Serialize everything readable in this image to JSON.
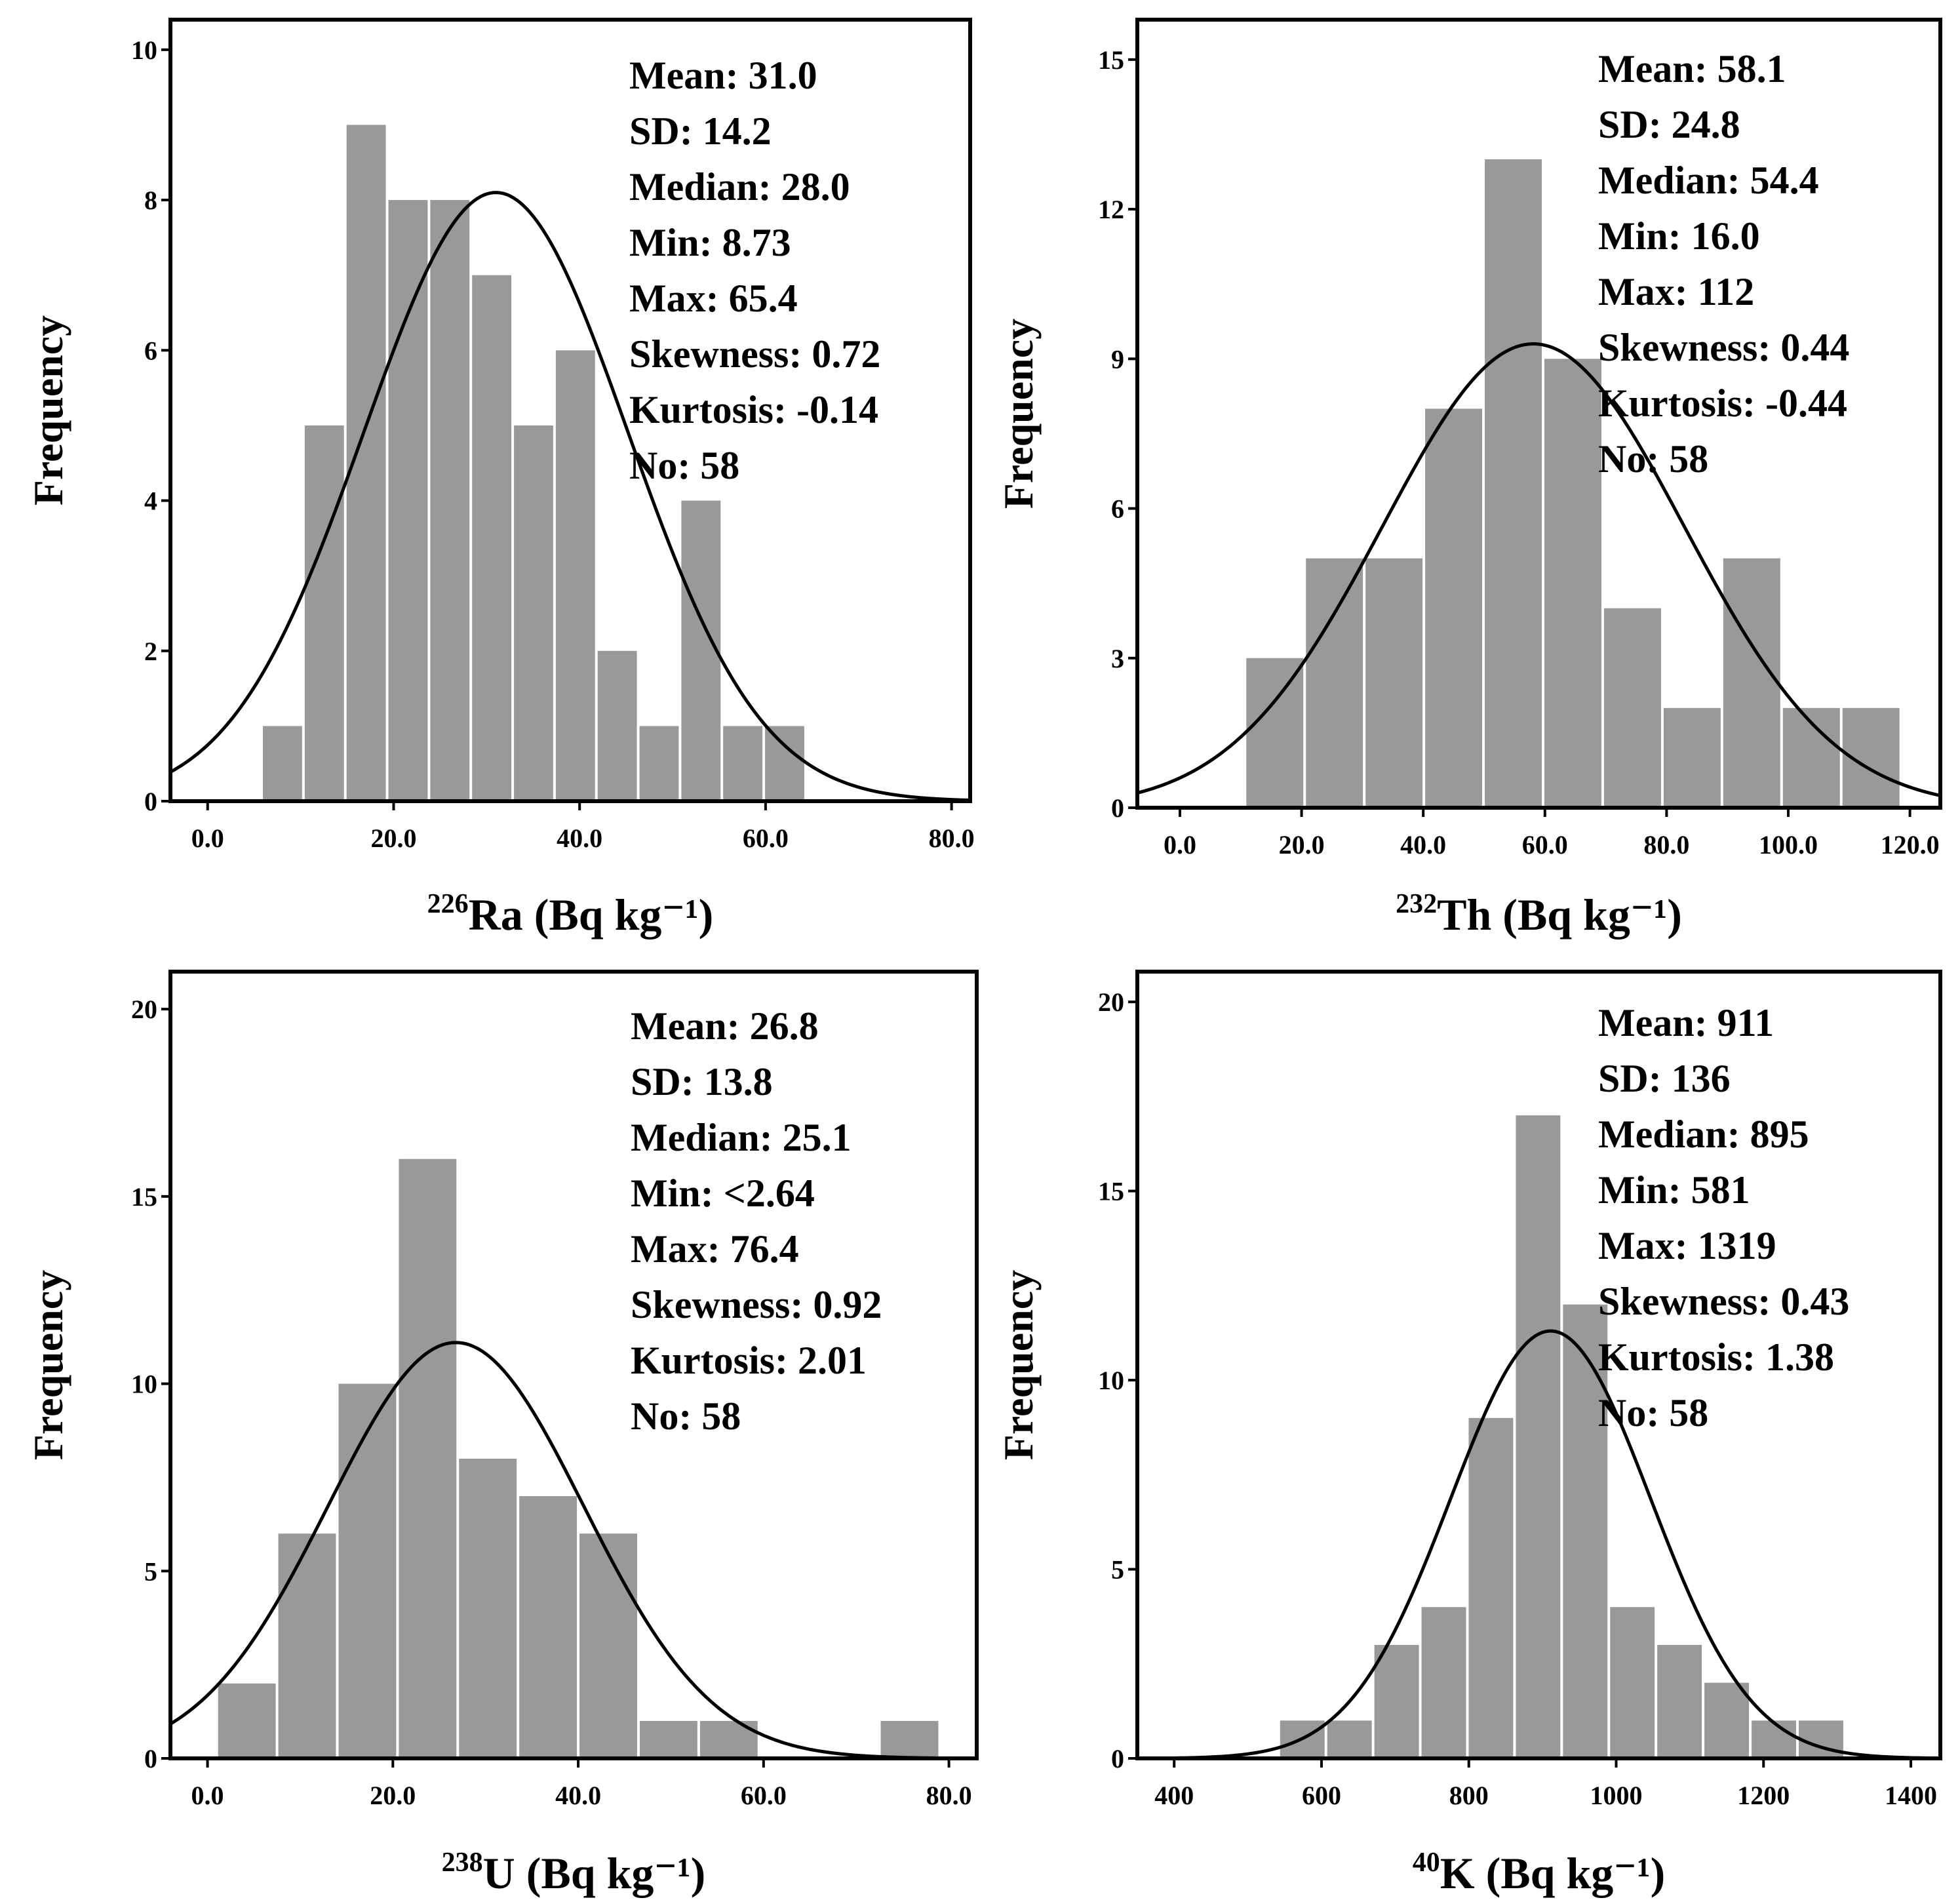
{
  "chart_data": [
    {
      "type": "bar",
      "id": "ra226",
      "xlabel_iso": "226",
      "xlabel_rest": "Ra (Bq kg⁻¹)",
      "ylabel": "Frequency",
      "xlim": [
        -4,
        82
      ],
      "ylim": [
        0,
        10.4
      ],
      "xticks": [
        "0.0",
        "20.0",
        "40.0",
        "60.0",
        "80.0"
      ],
      "xtick_values": [
        0,
        20,
        40,
        60,
        80
      ],
      "yticks": [
        "0",
        "2",
        "4",
        "6",
        "8",
        "10"
      ],
      "ytick_values": [
        0,
        2,
        4,
        6,
        8,
        10
      ],
      "bin_width": 4.5,
      "bin_start": 5.8,
      "values": [
        1,
        5,
        9,
        8,
        8,
        7,
        5,
        6,
        2,
        1,
        4,
        1,
        1
      ],
      "normal_curve": {
        "mean": 31.0,
        "sd": 14.2,
        "peak": 8.1
      },
      "stats": [
        "Mean: 31.0",
        "SD: 14.2",
        "Median: 28.0",
        "Min: 8.73",
        "Max: 65.4",
        "Skewness: 0.72",
        "Kurtosis:  -0.14",
        "No: 58"
      ]
    },
    {
      "type": "bar",
      "id": "th232",
      "xlabel_iso": "232",
      "xlabel_rest": "Th (Bq kg⁻¹)",
      "ylabel": "Frequency",
      "xlim": [
        -7,
        125
      ],
      "ylim": [
        0,
        15.8
      ],
      "xticks": [
        "0.0",
        "20.0",
        "40.0",
        "60.0",
        "80.0",
        "100.0",
        "120.0"
      ],
      "xtick_values": [
        0,
        20,
        40,
        60,
        80,
        100,
        120
      ],
      "yticks": [
        "0",
        "3",
        "6",
        "9",
        "12",
        "15"
      ],
      "ytick_values": [
        0,
        3,
        6,
        9,
        12,
        15
      ],
      "bin_width": 9.8,
      "bin_start": 10.7,
      "values": [
        3,
        5,
        5,
        8,
        13,
        9,
        4,
        2,
        5,
        2,
        2
      ],
      "normal_curve": {
        "mean": 58.1,
        "sd": 24.8,
        "peak": 9.3
      },
      "stats": [
        "Mean: 58.1",
        "SD: 24.8",
        "Median: 54.4",
        "Min: 16.0",
        "Max: 112",
        "Skewness: 0.44",
        "Kurtosis:  -0.44",
        "No: 58"
      ]
    },
    {
      "type": "bar",
      "id": "u238",
      "xlabel_iso": "238",
      "xlabel_rest": "U (Bq kg⁻¹)",
      "ylabel": "Frequency",
      "xlim": [
        -4,
        83
      ],
      "ylim": [
        0,
        21
      ],
      "xticks": [
        "0.0",
        "20.0",
        "40.0",
        "60.0",
        "80.0"
      ],
      "xtick_values": [
        0,
        20,
        40,
        60,
        80
      ],
      "yticks": [
        "0",
        "5",
        "10",
        "15",
        "20"
      ],
      "ytick_values": [
        0,
        5,
        10,
        15,
        20
      ],
      "bin_width": 6.5,
      "bin_start": 1.0,
      "values": [
        2,
        6,
        10,
        16,
        8,
        7,
        6,
        1,
        1,
        0,
        0,
        1
      ],
      "normal_curve": {
        "mean": 26.8,
        "sd": 13.8,
        "peak": 11.1
      },
      "stats": [
        "Mean: 26.8",
        "SD: 13.8",
        "Median: 25.1",
        "Min: <2.64",
        "Max: 76.4",
        "Skewness: 0.92",
        "Kurtosis: 2.01",
        "No: 58"
      ]
    },
    {
      "type": "bar",
      "id": "k40",
      "xlabel_iso": "40",
      "xlabel_rest": "K (Bq kg⁻¹)",
      "ylabel": "Frequency",
      "xlim": [
        350,
        1440
      ],
      "ylim": [
        0,
        20.8
      ],
      "xticks": [
        "400",
        "600",
        "800",
        "1000",
        "1200",
        "1400"
      ],
      "xtick_values": [
        400,
        600,
        800,
        1000,
        1200,
        1400
      ],
      "yticks": [
        "0",
        "5",
        "10",
        "15",
        "20"
      ],
      "ytick_values": [
        0,
        5,
        10,
        15,
        20
      ],
      "bin_width": 64,
      "bin_start": 542,
      "values": [
        1,
        1,
        3,
        4,
        9,
        17,
        12,
        4,
        3,
        2,
        1,
        1
      ],
      "normal_curve": {
        "mean": 911,
        "sd": 136,
        "peak": 11.3
      },
      "stats": [
        "Mean: 911",
        "SD: 136",
        "Median: 895",
        "Min: 581",
        "Max: 1319",
        "Skewness: 0.43",
        "Kurtosis: 1.38",
        "No: 58"
      ]
    }
  ]
}
